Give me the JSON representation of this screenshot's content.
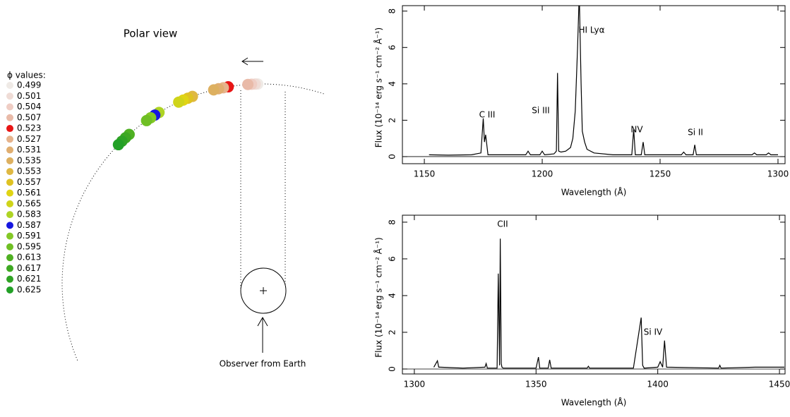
{
  "polar_view": {
    "title": "Polar view",
    "legend_title": "ϕ values:",
    "observer": "Observer from Earth",
    "phases": [
      0.499,
      0.501,
      0.504,
      0.507,
      0.523,
      0.527,
      0.531,
      0.535,
      0.553,
      0.557,
      0.561,
      0.565,
      0.583,
      0.587,
      0.591,
      0.595,
      0.613,
      0.617,
      0.621,
      0.625
    ],
    "colors": [
      "#efeae6",
      "#efdcd6",
      "#efcdc4",
      "#e9baa8",
      "#e81515",
      "#e6b38c",
      "#e0ae70",
      "#ddb060",
      "#dfb842",
      "#dfc222",
      "#e0d414",
      "#cfd41a",
      "#aed424",
      "#1616e0",
      "#84c826",
      "#6fbf24",
      "#4fb022",
      "#3ea822",
      "#2fa324",
      "#22a026"
    ]
  },
  "chart_data": [
    {
      "type": "line",
      "color": "#000000",
      "x": [
        1152,
        1160,
        1170,
        1174,
        1175,
        1175.5,
        1176,
        1177,
        1185,
        1193,
        1194,
        1195,
        1199,
        1200,
        1201,
        1205,
        1206,
        1206.5,
        1207,
        1208,
        1210,
        1212,
        1213,
        1214,
        1215,
        1215.7,
        1216.5,
        1217,
        1218,
        1219,
        1222,
        1230,
        1238,
        1238.8,
        1239.5,
        1242,
        1242.8,
        1243.5,
        1255,
        1259,
        1260,
        1261,
        1264,
        1264.7,
        1265.4,
        1275,
        1289,
        1290,
        1291,
        1295,
        1296,
        1297,
        1300
      ],
      "values": [
        0.1,
        0.08,
        0.1,
        0.2,
        2.1,
        0.8,
        1.2,
        0.1,
        0.1,
        0.1,
        0.3,
        0.1,
        0.1,
        0.3,
        0.1,
        0.15,
        0.3,
        4.6,
        0.3,
        0.25,
        0.3,
        0.5,
        1.0,
        2.5,
        6,
        9,
        4,
        1.4,
        0.8,
        0.4,
        0.2,
        0.1,
        0.1,
        1.5,
        0.1,
        0.1,
        0.8,
        0.1,
        0.1,
        0.1,
        0.25,
        0.1,
        0.1,
        0.65,
        0.1,
        0.1,
        0.1,
        0.2,
        0.1,
        0.1,
        0.2,
        0.1,
        0.1
      ],
      "xlim": [
        1140.7,
        1303
      ],
      "ylim": [
        -0.39,
        8.3
      ],
      "xticks": [
        1150,
        1200,
        1250,
        1300
      ],
      "yticks": [
        0,
        2,
        4,
        6,
        8
      ],
      "xlabel": "Wavelength (Å)",
      "ylabel": "Flux (10⁻¹⁴ erg s⁻¹  cm⁻² Å⁻¹)",
      "annotations": [
        "C III",
        "Si III",
        "HI Lyα",
        "NV",
        "Si II"
      ]
    },
    {
      "type": "line",
      "color": "#000000",
      "x": [
        1308,
        1309.5,
        1310,
        1310.5,
        1320,
        1329,
        1329.5,
        1330,
        1334,
        1334.5,
        1335,
        1335.3,
        1335.7,
        1336,
        1336.5,
        1340,
        1350,
        1351,
        1351.5,
        1355,
        1355.6,
        1356.2,
        1371,
        1371.5,
        1372,
        1390,
        1393.2,
        1393.8,
        1394.4,
        1400,
        1401,
        1402,
        1402.8,
        1403.6,
        1425,
        1425.5,
        1426,
        1440,
        1452
      ],
      "values": [
        0.1,
        0.45,
        0.1,
        0.1,
        0.05,
        0.1,
        0.3,
        0.05,
        0.05,
        5.2,
        0.2,
        7.1,
        0.3,
        0.1,
        0.05,
        0.05,
        0.05,
        0.65,
        0.05,
        0.05,
        0.5,
        0.05,
        0.05,
        0.15,
        0.05,
        0.05,
        2.8,
        0.2,
        0.05,
        0.1,
        0.4,
        0.1,
        1.55,
        0.1,
        0.05,
        0.2,
        0.05,
        0.1,
        0.1
      ],
      "xlim": [
        1295.1,
        1452.3
      ],
      "ylim": [
        -0.27,
        8.38
      ],
      "xticks": [
        1300,
        1350,
        1400,
        1450
      ],
      "yticks": [
        0,
        2,
        4,
        6,
        8
      ],
      "xlabel": "Wavelength (Å)",
      "ylabel": "Flux (10⁻¹⁴ erg s⁻¹  cm⁻² Å⁻¹)",
      "annotations": [
        "CII",
        "Si IV"
      ]
    }
  ]
}
